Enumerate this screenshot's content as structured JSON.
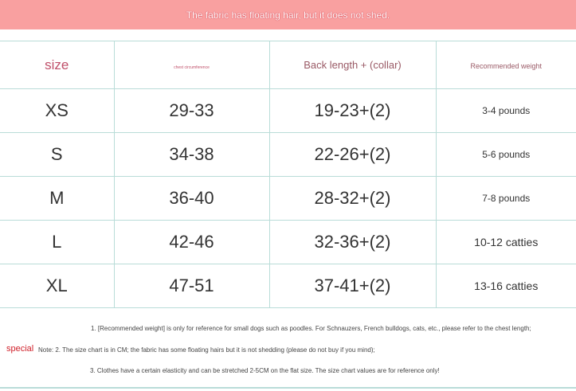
{
  "banner": {
    "text": "The fabric has floating hair, but it does not shed."
  },
  "table": {
    "headers": [
      "size",
      "chest circumference",
      "Back length + (collar)",
      "Recommended weight"
    ],
    "rows": [
      [
        "XS",
        "29-33",
        "19-23+(2)",
        "3-4 pounds"
      ],
      [
        "S",
        "34-38",
        "22-26+(2)",
        "5-6 pounds"
      ],
      [
        "M",
        "36-40",
        "28-32+(2)",
        "7-8 pounds"
      ],
      [
        "L",
        "42-46",
        "32-36+(2)",
        "10-12 catties"
      ],
      [
        "XL",
        "47-51",
        "37-41+(2)",
        "13-16 catties"
      ]
    ]
  },
  "notes": {
    "special": "special",
    "line1": "1. [Recommended weight] is only for reference for small dogs such as poodles. For Schnauzers, French bulldogs, cats, etc., please refer to the chest length;",
    "line2": "Note: 2. The size chart is in CM; the fabric has some floating hairs but it is not shedding (please do not buy if you mind);",
    "line3": "3. Clothes have a certain elasticity and can be stretched 2-5CM on the flat size. The size chart values are for reference only!"
  }
}
